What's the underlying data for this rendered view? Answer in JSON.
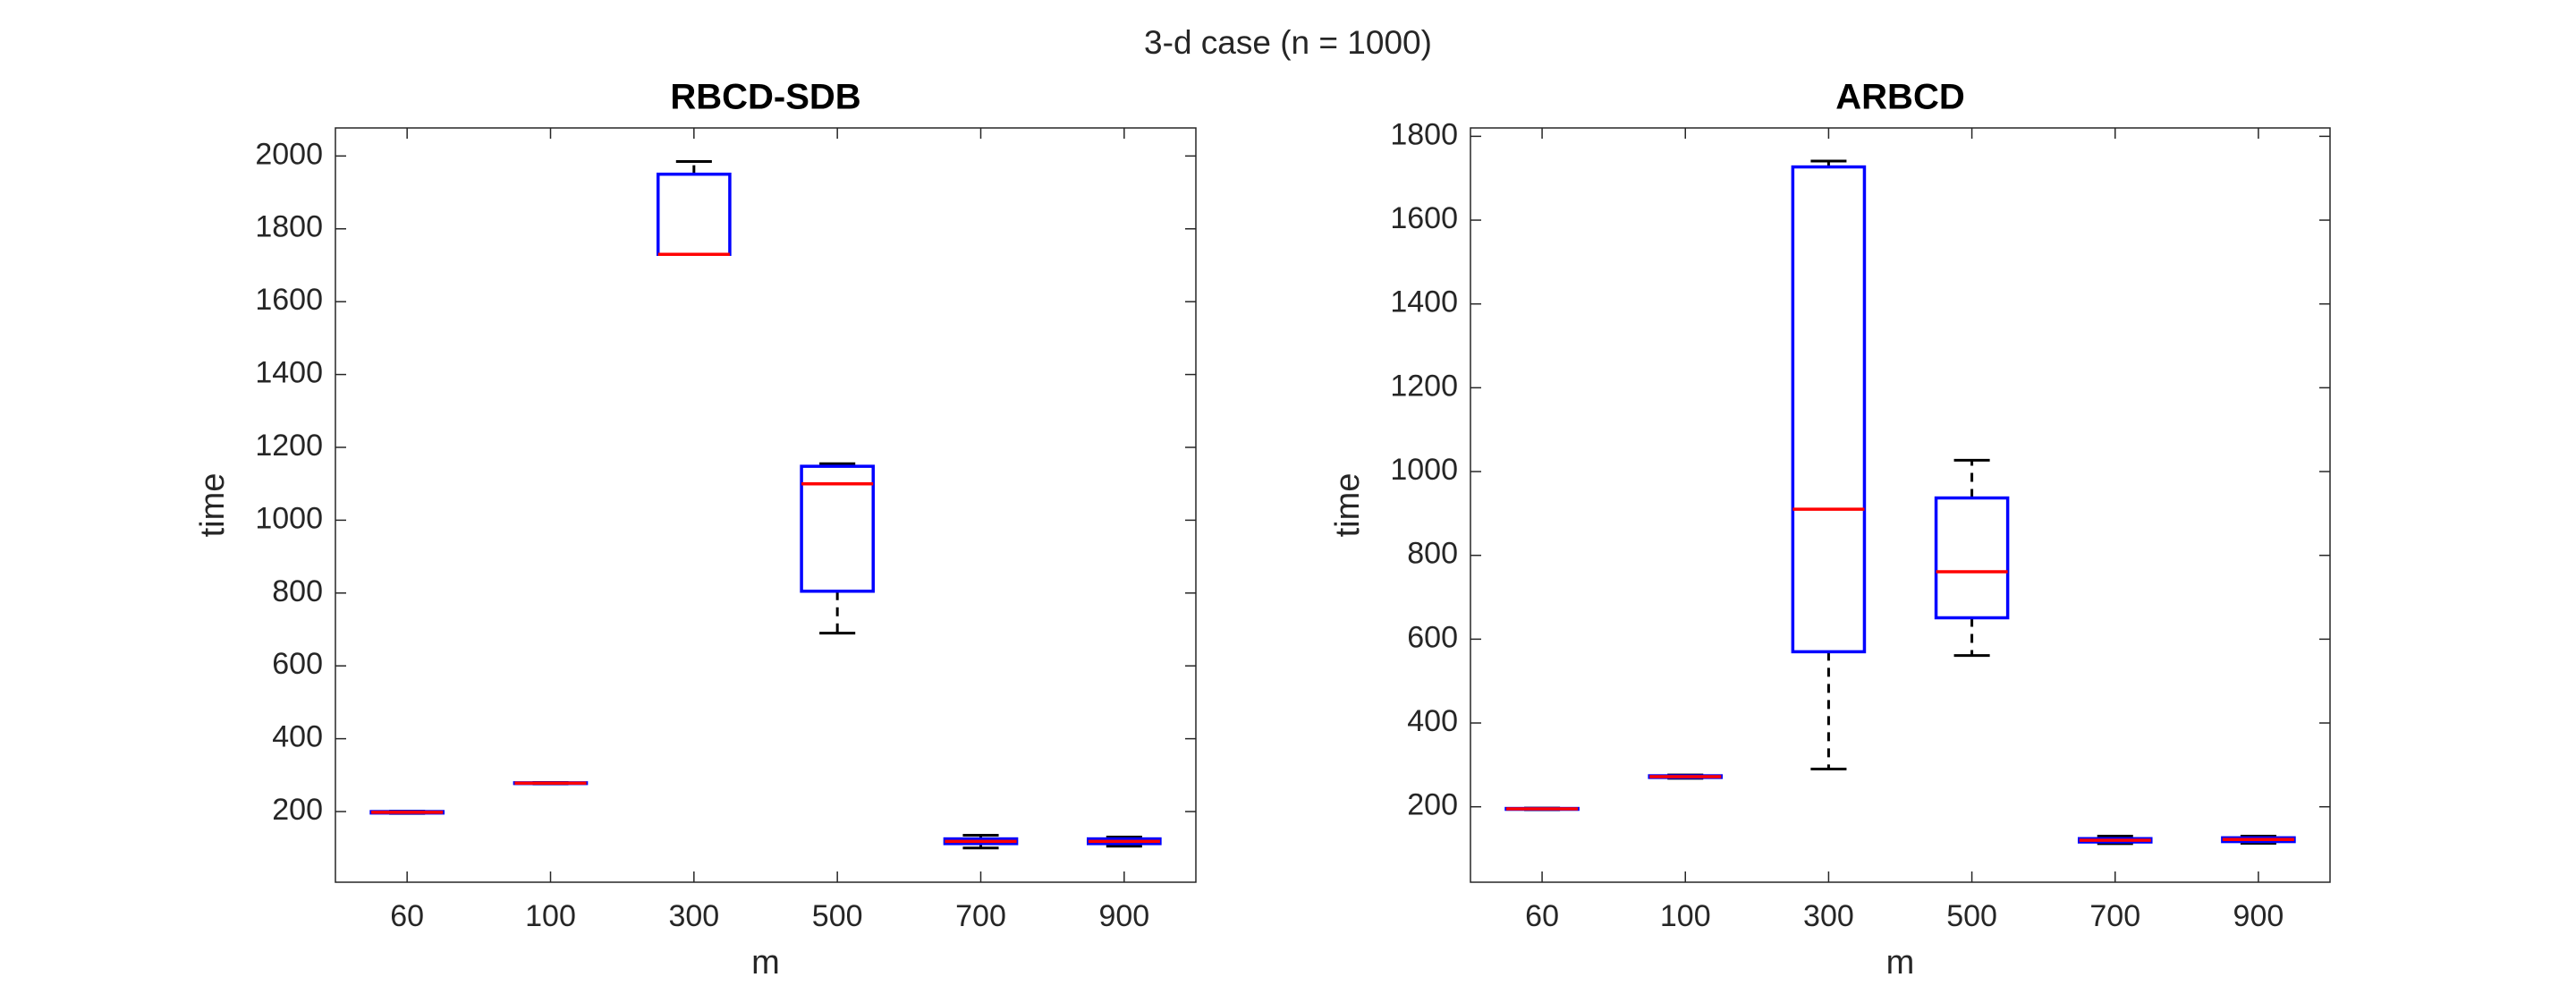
{
  "title": "3-d case (n = 1000)",
  "chart_data": [
    {
      "type": "box",
      "title": "RBCD-SDB",
      "xlabel": "m",
      "ylabel": "time",
      "categories": [
        "60",
        "100",
        "300",
        "500",
        "700",
        "900"
      ],
      "min": [
        195,
        276,
        1730,
        690,
        100,
        105
      ],
      "q1": [
        196,
        277,
        1730,
        805,
        112,
        112
      ],
      "median": [
        198,
        278,
        1730,
        1100,
        118,
        118
      ],
      "q3": [
        200,
        279,
        1950,
        1148,
        125,
        125
      ],
      "max": [
        201,
        280,
        1985,
        1155,
        135,
        130
      ],
      "ylim": [
        6,
        2077
      ],
      "yticks": [
        200,
        400,
        600,
        800,
        1000,
        1200,
        1400,
        1600,
        1800,
        2000
      ],
      "box_color": "#0000ff",
      "median_color": "#ff0000",
      "whisker_color": "#000000"
    },
    {
      "type": "box",
      "title": "ARBCD",
      "xlabel": "m",
      "ylabel": "time",
      "categories": [
        "60",
        "100",
        "300",
        "500",
        "700",
        "900"
      ],
      "min": [
        193,
        268,
        290,
        561,
        112,
        113
      ],
      "q1": [
        194,
        270,
        570,
        651,
        116,
        117
      ],
      "median": [
        195,
        272,
        910,
        761,
        120,
        122
      ],
      "q3": [
        196,
        274,
        1727,
        937,
        124,
        126
      ],
      "max": [
        197,
        276,
        1741,
        1027,
        130,
        130
      ],
      "ylim": [
        20,
        1820
      ],
      "yticks": [
        200,
        400,
        600,
        800,
        1000,
        1200,
        1400,
        1600,
        1800
      ],
      "box_color": "#0000ff",
      "median_color": "#ff0000",
      "whisker_color": "#000000"
    }
  ]
}
